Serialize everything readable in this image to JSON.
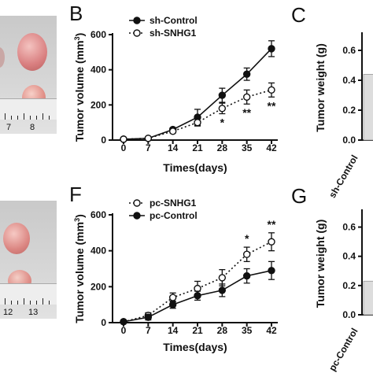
{
  "panels": {
    "B": "B",
    "C": "C",
    "F": "F",
    "G": "G"
  },
  "photos": {
    "top_ruler_numbers": [
      "7",
      "8"
    ],
    "bottom_ruler_numbers": [
      "12",
      "13"
    ]
  },
  "chart_data": [
    {
      "panel": "B",
      "type": "line",
      "xlabel": "Times(days)",
      "ylabel": "Tumor volume (mm³)",
      "ylabel_parts": [
        "Tumor volume (mm",
        "3",
        ")"
      ],
      "x": [
        0,
        7,
        14,
        21,
        28,
        35,
        42
      ],
      "xticks": [
        "0",
        "7",
        "14",
        "21",
        "28",
        "35",
        "42"
      ],
      "ylim": [
        0,
        600
      ],
      "yticks": [
        "0",
        "200",
        "400",
        "600"
      ],
      "legend_position": "top-left",
      "series": [
        {
          "name": "sh-Control",
          "values": [
            5,
            10,
            60,
            130,
            255,
            375,
            520
          ],
          "errors": [
            0,
            5,
            10,
            45,
            40,
            35,
            45
          ],
          "marker": "filled",
          "line": "solid"
        },
        {
          "name": "sh-SNHG1",
          "values": [
            5,
            10,
            50,
            100,
            180,
            245,
            285
          ],
          "errors": [
            0,
            5,
            10,
            20,
            30,
            40,
            40
          ],
          "marker": "open",
          "line": "dotted"
        }
      ],
      "annotations": [
        {
          "x": 28,
          "text": "*"
        },
        {
          "x": 35,
          "text": "**"
        },
        {
          "x": 42,
          "text": "**"
        }
      ]
    },
    {
      "panel": "F",
      "type": "line",
      "xlabel": "Times(days)",
      "ylabel": "Tumor volume (mm³)",
      "ylabel_parts": [
        "Tumor volume (mm",
        "3",
        ")"
      ],
      "x": [
        0,
        7,
        14,
        21,
        28,
        35,
        42
      ],
      "xticks": [
        "0",
        "7",
        "14",
        "21",
        "28",
        "35",
        "42"
      ],
      "ylim": [
        0,
        600
      ],
      "yticks": [
        "0",
        "200",
        "400",
        "600"
      ],
      "legend_position": "top-left",
      "series": [
        {
          "name": "pc-SNHG1",
          "values": [
            5,
            40,
            140,
            190,
            250,
            380,
            450
          ],
          "errors": [
            0,
            15,
            25,
            40,
            45,
            40,
            50
          ],
          "marker": "open",
          "line": "dotted"
        },
        {
          "name": "pc-Control",
          "values": [
            5,
            30,
            100,
            150,
            180,
            260,
            290
          ],
          "errors": [
            0,
            15,
            20,
            25,
            35,
            40,
            50
          ],
          "marker": "filled",
          "line": "solid"
        }
      ],
      "annotations": [
        {
          "x": 35,
          "text": "*"
        },
        {
          "x": 42,
          "text": "**"
        }
      ]
    },
    {
      "panel": "C",
      "type": "bar",
      "ylabel": "Tumor weight (g)",
      "ylim": [
        0,
        0.7
      ],
      "yticks": [
        "0.0",
        "0.2",
        "0.4",
        "0.6"
      ],
      "categories": [
        "sh-Control"
      ],
      "values": [
        0.44
      ]
    },
    {
      "panel": "G",
      "type": "bar",
      "ylabel": "Tumor weight (g)",
      "ylim": [
        0,
        0.7
      ],
      "yticks": [
        "0.0",
        "0.2",
        "0.4",
        "0.6"
      ],
      "categories": [
        "pc-Control"
      ],
      "values": [
        0.23
      ]
    }
  ]
}
